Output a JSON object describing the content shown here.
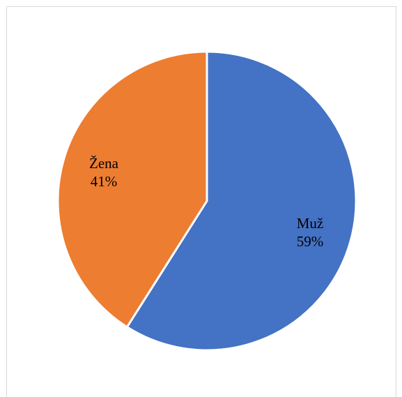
{
  "chart_data": {
    "type": "pie",
    "title": "",
    "slices": [
      {
        "label": "Muž",
        "value": 59,
        "value_label": "59%",
        "color": "#4472C4"
      },
      {
        "label": "Žena",
        "value": 41,
        "value_label": "41%",
        "color": "#ED7D31"
      }
    ],
    "start_angle": "top",
    "direction": "clockwise",
    "legend": "none",
    "slice_border_color": "#ffffff"
  }
}
